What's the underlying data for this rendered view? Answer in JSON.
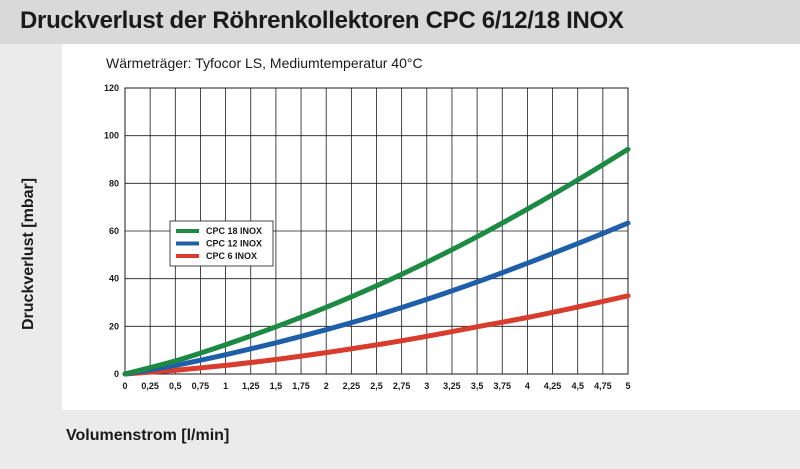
{
  "header": {
    "title": "Druckverlust der Röhrenkollektoren CPC 6/12/18 INOX"
  },
  "chart_data": {
    "type": "line",
    "title": "Druckverlust der Röhrenkollektoren CPC 6/12/18 INOX",
    "subtitle": "Wärmeträger: Tyfocor LS, Mediumtemperatur 40°C",
    "xlabel": "Volumenstrom [l/min]",
    "ylabel": "Druckverlust [mbar]",
    "xlim": [
      0,
      5
    ],
    "ylim": [
      0,
      120
    ],
    "x_ticks": [
      "0",
      "0,25",
      "0,5",
      "0,75",
      "1",
      "1,25",
      "1,5",
      "1,75",
      "2",
      "2,25",
      "2,5",
      "2,75",
      "3",
      "3,25",
      "3,5",
      "3,75",
      "4",
      "4,25",
      "4,5",
      "4,75",
      "5"
    ],
    "y_ticks": [
      "0",
      "20",
      "40",
      "60",
      "80",
      "100",
      "120"
    ],
    "grid": true,
    "legend_position": "left-middle",
    "x": [
      0,
      0.5,
      1,
      1.5,
      2,
      2.5,
      3,
      3.5,
      4,
      4.5,
      5
    ],
    "series": [
      {
        "name": "CPC 18 INOX",
        "color": "#1d8a44",
        "values": [
          0,
          5.5,
          12.3,
          19.8,
          28,
          37,
          46.9,
          57.6,
          69.2,
          81.4,
          94.3
        ]
      },
      {
        "name": "CPC 12 INOX",
        "color": "#1f5fa9",
        "values": [
          0,
          3.6,
          8.1,
          13.1,
          18.6,
          24.6,
          31.3,
          38.6,
          46.5,
          54.7,
          63.3
        ]
      },
      {
        "name": "CPC 6 INOX",
        "color": "#d73c2c",
        "values": [
          0,
          1.6,
          3.6,
          6.1,
          9,
          12.2,
          15.8,
          19.8,
          23.7,
          28.1,
          32.8
        ]
      }
    ]
  }
}
